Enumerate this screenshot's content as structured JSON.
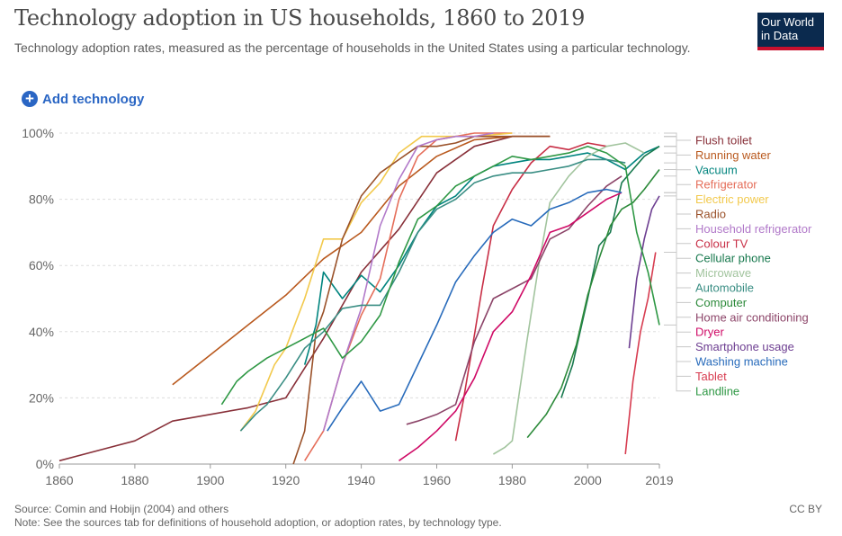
{
  "header": {
    "title": "Technology adoption in US households, 1860 to 2019",
    "subtitle": "Technology adoption rates, measured as the percentage of households in the United States using a particular technology.",
    "logo_line1": "Our World",
    "logo_line2": "in Data"
  },
  "controls": {
    "add_label": "Add technology",
    "add_icon": "+"
  },
  "footer": {
    "source": "Source: Comin and Hobijn (2004) and others",
    "note": "Note: See the sources tab for definitions of household adoption, or adoption rates, by technology type.",
    "license": "CC BY"
  },
  "chart_data": {
    "type": "line",
    "xlim": [
      1860,
      2019
    ],
    "ylim": [
      0,
      100
    ],
    "x_ticks": [
      1860,
      1880,
      1900,
      1920,
      1940,
      1960,
      1980,
      2000,
      2019
    ],
    "x_tick_labels": [
      "1860",
      "1880",
      "1900",
      "1920",
      "1940",
      "1960",
      "1980",
      "2000",
      "2019"
    ],
    "y_ticks": [
      0,
      20,
      40,
      60,
      80,
      100
    ],
    "y_tick_labels": [
      "0%",
      "20%",
      "40%",
      "60%",
      "80%",
      "100%"
    ],
    "grid": "horizontal dashed",
    "legend_placement": "right",
    "series": [
      {
        "name": "Flush toilet",
        "color": "#883039",
        "points": [
          [
            1860,
            1
          ],
          [
            1880,
            7
          ],
          [
            1890,
            13
          ],
          [
            1900,
            15
          ],
          [
            1910,
            17
          ],
          [
            1920,
            20
          ],
          [
            1930,
            38
          ],
          [
            1940,
            58
          ],
          [
            1950,
            71
          ],
          [
            1960,
            88
          ],
          [
            1970,
            96
          ],
          [
            1980,
            99
          ],
          [
            1990,
            99
          ]
        ]
      },
      {
        "name": "Running water",
        "color": "#b9591e",
        "points": [
          [
            1890,
            24
          ],
          [
            1900,
            33
          ],
          [
            1910,
            42
          ],
          [
            1920,
            51
          ],
          [
            1930,
            62
          ],
          [
            1940,
            70
          ],
          [
            1950,
            84
          ],
          [
            1960,
            93
          ],
          [
            1970,
            98
          ],
          [
            1980,
            99
          ],
          [
            1990,
            99
          ]
        ]
      },
      {
        "name": "Vacuum",
        "color": "#00847e",
        "points": [
          [
            1925,
            30
          ],
          [
            1928,
            42
          ],
          [
            1930,
            58
          ],
          [
            1935,
            50
          ],
          [
            1940,
            57
          ],
          [
            1945,
            52
          ],
          [
            1950,
            60
          ],
          [
            1955,
            70
          ],
          [
            1960,
            78
          ],
          [
            1965,
            81
          ],
          [
            1970,
            87
          ],
          [
            1975,
            90
          ],
          [
            1980,
            91
          ],
          [
            1985,
            92
          ],
          [
            1990,
            92
          ],
          [
            1995,
            93
          ],
          [
            2000,
            94
          ],
          [
            2005,
            92
          ],
          [
            2010,
            89
          ],
          [
            2015,
            94
          ],
          [
            2019,
            96
          ]
        ]
      },
      {
        "name": "Refrigerator",
        "color": "#e56e5a",
        "points": [
          [
            1925,
            1
          ],
          [
            1930,
            10
          ],
          [
            1935,
            30
          ],
          [
            1940,
            45
          ],
          [
            1945,
            56
          ],
          [
            1950,
            80
          ],
          [
            1955,
            93
          ],
          [
            1960,
            98
          ],
          [
            1965,
            99
          ],
          [
            1970,
            100
          ],
          [
            1980,
            100
          ]
        ]
      },
      {
        "name": "Electric power",
        "color": "#f2c94c",
        "points": [
          [
            1908,
            10
          ],
          [
            1912,
            16
          ],
          [
            1917,
            30
          ],
          [
            1920,
            35
          ],
          [
            1925,
            50
          ],
          [
            1930,
            68
          ],
          [
            1935,
            68
          ],
          [
            1940,
            79
          ],
          [
            1945,
            85
          ],
          [
            1950,
            94
          ],
          [
            1956,
            99
          ],
          [
            1970,
            99
          ],
          [
            1980,
            100
          ]
        ]
      },
      {
        "name": "Radio",
        "color": "#9a5129",
        "points": [
          [
            1922,
            0
          ],
          [
            1925,
            10
          ],
          [
            1928,
            40
          ],
          [
            1930,
            46
          ],
          [
            1935,
            68
          ],
          [
            1940,
            81
          ],
          [
            1945,
            88
          ],
          [
            1950,
            92
          ],
          [
            1955,
            96
          ],
          [
            1960,
            96
          ],
          [
            1965,
            97
          ],
          [
            1970,
            99
          ],
          [
            1980,
            99
          ],
          [
            1990,
            99
          ]
        ]
      },
      {
        "name": "Household refrigerator",
        "color": "#b179c9",
        "points": [
          [
            1930,
            10
          ],
          [
            1935,
            30
          ],
          [
            1940,
            47
          ],
          [
            1945,
            72
          ],
          [
            1950,
            86
          ],
          [
            1955,
            96
          ],
          [
            1960,
            98
          ],
          [
            1965,
            99
          ],
          [
            1970,
            99
          ],
          [
            1975,
            100
          ]
        ]
      },
      {
        "name": "Colour TV",
        "color": "#c82f46",
        "points": [
          [
            1965,
            7
          ],
          [
            1967,
            19
          ],
          [
            1970,
            39
          ],
          [
            1972,
            53
          ],
          [
            1975,
            72
          ],
          [
            1980,
            83
          ],
          [
            1985,
            91
          ],
          [
            1990,
            96
          ],
          [
            1995,
            95
          ],
          [
            2000,
            97
          ],
          [
            2005,
            96
          ]
        ]
      },
      {
        "name": "Cellular phone",
        "color": "#18794e",
        "points": [
          [
            1993,
            20
          ],
          [
            1996,
            30
          ],
          [
            2000,
            50
          ],
          [
            2003,
            66
          ],
          [
            2006,
            70
          ],
          [
            2009,
            85
          ],
          [
            2012,
            89
          ],
          [
            2015,
            93
          ],
          [
            2019,
            96
          ]
        ]
      },
      {
        "name": "Microwave",
        "color": "#a2c49e",
        "points": [
          [
            1975,
            3
          ],
          [
            1978,
            5
          ],
          [
            1980,
            7
          ],
          [
            1984,
            38
          ],
          [
            1987,
            60
          ],
          [
            1990,
            79
          ],
          [
            1995,
            87
          ],
          [
            2000,
            93
          ],
          [
            2005,
            96
          ],
          [
            2010,
            97
          ],
          [
            2015,
            94
          ]
        ]
      },
      {
        "name": "Automobile",
        "color": "#3a8e84",
        "points": [
          [
            1908,
            10
          ],
          [
            1912,
            15
          ],
          [
            1915,
            18
          ],
          [
            1920,
            26
          ],
          [
            1925,
            35
          ],
          [
            1930,
            40
          ],
          [
            1935,
            47
          ],
          [
            1940,
            48
          ],
          [
            1945,
            48
          ],
          [
            1950,
            58
          ],
          [
            1955,
            70
          ],
          [
            1960,
            77
          ],
          [
            1965,
            80
          ],
          [
            1970,
            85
          ],
          [
            1975,
            87
          ],
          [
            1980,
            88
          ],
          [
            1985,
            88
          ],
          [
            1990,
            89
          ],
          [
            1995,
            90
          ],
          [
            2000,
            92
          ],
          [
            2005,
            92
          ],
          [
            2010,
            91
          ]
        ]
      },
      {
        "name": "Computer",
        "color": "#2c8a3a",
        "points": [
          [
            1984,
            8
          ],
          [
            1989,
            15
          ],
          [
            1993,
            23
          ],
          [
            1997,
            36
          ],
          [
            2000,
            51
          ],
          [
            2003,
            62
          ],
          [
            2006,
            72
          ],
          [
            2009,
            77
          ],
          [
            2012,
            79
          ],
          [
            2015,
            83
          ],
          [
            2019,
            89
          ]
        ]
      },
      {
        "name": "Home air conditioning",
        "color": "#8c4569",
        "points": [
          [
            1952,
            12
          ],
          [
            1955,
            13
          ],
          [
            1960,
            15
          ],
          [
            1965,
            18
          ],
          [
            1970,
            37
          ],
          [
            1975,
            50
          ],
          [
            1980,
            53
          ],
          [
            1985,
            56
          ],
          [
            1990,
            68
          ],
          [
            1995,
            71
          ],
          [
            2000,
            78
          ],
          [
            2005,
            84
          ],
          [
            2009,
            87
          ]
        ]
      },
      {
        "name": "Dryer",
        "color": "#cf0a66",
        "points": [
          [
            1950,
            1
          ],
          [
            1955,
            5
          ],
          [
            1960,
            10
          ],
          [
            1965,
            16
          ],
          [
            1970,
            26
          ],
          [
            1975,
            40
          ],
          [
            1980,
            46
          ],
          [
            1985,
            57
          ],
          [
            1990,
            70
          ],
          [
            1995,
            72
          ],
          [
            2000,
            76
          ],
          [
            2005,
            80
          ],
          [
            2009,
            82
          ]
        ]
      },
      {
        "name": "Smartphone usage",
        "color": "#6d3e91",
        "points": [
          [
            2011,
            35
          ],
          [
            2013,
            56
          ],
          [
            2015,
            68
          ],
          [
            2017,
            77
          ],
          [
            2019,
            81
          ]
        ]
      },
      {
        "name": "Washing machine",
        "color": "#286bbb",
        "points": [
          [
            1931,
            10
          ],
          [
            1935,
            17
          ],
          [
            1940,
            25
          ],
          [
            1945,
            16
          ],
          [
            1950,
            18
          ],
          [
            1955,
            30
          ],
          [
            1960,
            42
          ],
          [
            1965,
            55
          ],
          [
            1970,
            63
          ],
          [
            1975,
            70
          ],
          [
            1980,
            74
          ],
          [
            1985,
            72
          ],
          [
            1990,
            77
          ],
          [
            1995,
            79
          ],
          [
            2000,
            82
          ],
          [
            2005,
            83
          ],
          [
            2009,
            82
          ]
        ]
      },
      {
        "name": "Tablet",
        "color": "#d73c50",
        "points": [
          [
            2010,
            3
          ],
          [
            2012,
            25
          ],
          [
            2014,
            40
          ],
          [
            2016,
            50
          ],
          [
            2018,
            64
          ]
        ]
      },
      {
        "name": "Landline",
        "color": "#2f9845",
        "points": [
          [
            1903,
            18
          ],
          [
            1907,
            25
          ],
          [
            1910,
            28
          ],
          [
            1915,
            32
          ],
          [
            1920,
            35
          ],
          [
            1925,
            38
          ],
          [
            1930,
            41
          ],
          [
            1935,
            32
          ],
          [
            1940,
            37
          ],
          [
            1945,
            45
          ],
          [
            1950,
            61
          ],
          [
            1955,
            74
          ],
          [
            1960,
            78
          ],
          [
            1965,
            84
          ],
          [
            1970,
            87
          ],
          [
            1975,
            90
          ],
          [
            1980,
            93
          ],
          [
            1985,
            92
          ],
          [
            1990,
            93
          ],
          [
            1995,
            94
          ],
          [
            2000,
            96
          ],
          [
            2005,
            94
          ],
          [
            2010,
            90
          ],
          [
            2013,
            70
          ],
          [
            2016,
            58
          ],
          [
            2019,
            42
          ]
        ]
      }
    ]
  }
}
